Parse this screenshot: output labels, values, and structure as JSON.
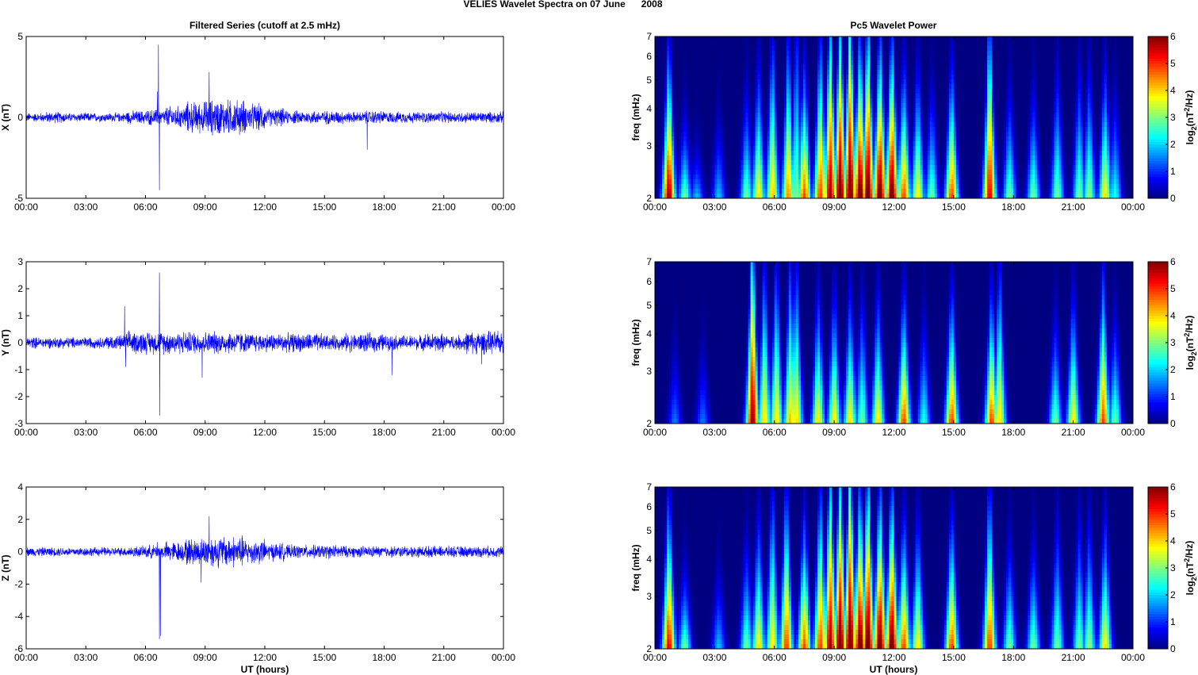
{
  "title": "VELIES Wavelet Spectra on 07 June      2008",
  "chart_data": [
    {
      "type": "line",
      "title": "Filtered Series (cutoff at 2.5 mHz)",
      "x_tick_labels": [
        "00:00",
        "03:00",
        "06:00",
        "09:00",
        "12:00",
        "15:00",
        "18:00",
        "21:00",
        "00:00"
      ],
      "xlim_hours": [
        0,
        24
      ],
      "xlabel": "UT (hours)",
      "panels": [
        {
          "component": "X",
          "ylabel": "X (nT)",
          "ylim": [
            -5,
            5
          ],
          "yticks": [
            -5,
            0,
            5
          ],
          "color": "#0000ff",
          "noise_envelope_nT": [
            0.2,
            0.25,
            0.2,
            0.2,
            0.2,
            0.3,
            0.35,
            0.5,
            0.7,
            0.8,
            0.8,
            0.6,
            0.4,
            0.3,
            0.3,
            0.3,
            0.25,
            0.3,
            0.25,
            0.25,
            0.25,
            0.25,
            0.25,
            0.25
          ],
          "spikes": [
            [
              6.65,
              4.5
            ],
            [
              6.7,
              -4.5
            ],
            [
              9.2,
              2.8
            ],
            [
              17.15,
              -2.0
            ],
            [
              6.6,
              1.6
            ]
          ]
        },
        {
          "component": "Y",
          "ylabel": "Y (nT)",
          "ylim": [
            -3,
            3
          ],
          "yticks": [
            -3,
            -2,
            -1,
            0,
            1,
            2,
            3
          ],
          "color": "#0000ff",
          "noise_envelope_nT": [
            0.15,
            0.15,
            0.15,
            0.15,
            0.2,
            0.3,
            0.3,
            0.3,
            0.3,
            0.3,
            0.3,
            0.25,
            0.25,
            0.25,
            0.25,
            0.2,
            0.25,
            0.25,
            0.2,
            0.2,
            0.25,
            0.2,
            0.3,
            0.3
          ],
          "spikes": [
            [
              4.95,
              1.35
            ],
            [
              6.7,
              2.6
            ],
            [
              6.72,
              -2.7
            ],
            [
              8.85,
              -1.3
            ],
            [
              18.4,
              -1.2
            ],
            [
              5.0,
              -0.9
            ],
            [
              22.9,
              -0.8
            ]
          ]
        },
        {
          "component": "Z",
          "ylabel": "Z (nT)",
          "ylim": [
            -6,
            4
          ],
          "yticks": [
            -6,
            -4,
            -2,
            0,
            2,
            4
          ],
          "color": "#0000ff",
          "noise_envelope_nT": [
            0.2,
            0.2,
            0.2,
            0.2,
            0.2,
            0.25,
            0.3,
            0.45,
            0.6,
            0.7,
            0.7,
            0.55,
            0.4,
            0.3,
            0.3,
            0.3,
            0.25,
            0.25,
            0.25,
            0.25,
            0.25,
            0.25,
            0.25,
            0.25
          ],
          "spikes": [
            [
              6.7,
              -5.4
            ],
            [
              6.75,
              -5.2
            ],
            [
              9.2,
              2.2
            ],
            [
              8.8,
              -1.9
            ],
            [
              6.6,
              0.6
            ]
          ]
        }
      ]
    },
    {
      "type": "heatmap",
      "title": "Pc5 Wavelet Power",
      "x_tick_labels": [
        "00:00",
        "03:00",
        "06:00",
        "09:00",
        "12:00",
        "15:00",
        "18:00",
        "21:00",
        "00:00"
      ],
      "xlim_hours": [
        0,
        24
      ],
      "xlabel": "UT (hours)",
      "ylabel": "freq (mHz)",
      "yscale": "log",
      "ylim": [
        2,
        7
      ],
      "yticks": [
        2,
        3,
        4,
        5,
        6,
        7
      ],
      "colormap": "jet",
      "clim": [
        0,
        6
      ],
      "colorbar_ticks": [
        0,
        1,
        2,
        3,
        4,
        5,
        6
      ],
      "colorbar_label_parts": [
        "log",
        "2",
        "(nT",
        "2",
        "/Hz)"
      ],
      "note": "blobs: [hour, peak log2 power, decay height mHz]",
      "panels": [
        {
          "component": "X",
          "blobs": [
            [
              0.7,
              6,
              2.5
            ],
            [
              1.5,
              3,
              1
            ],
            [
              2.1,
              2,
              0.6
            ],
            [
              3.2,
              2,
              1
            ],
            [
              4.6,
              3,
              1.5
            ],
            [
              5.2,
              4,
              2
            ],
            [
              5.9,
              4.2,
              3
            ],
            [
              6.7,
              4.5,
              3
            ],
            [
              7.1,
              3,
              4
            ],
            [
              7.5,
              5,
              2
            ],
            [
              8.3,
              5,
              3
            ],
            [
              8.8,
              6,
              4
            ],
            [
              9.3,
              6.5,
              4
            ],
            [
              9.8,
              6.5,
              5
            ],
            [
              10.3,
              6.5,
              3
            ],
            [
              10.7,
              6.5,
              4
            ],
            [
              11.3,
              6.5,
              3
            ],
            [
              11.9,
              6.5,
              3
            ],
            [
              12.5,
              5,
              2
            ],
            [
              13.2,
              4,
              2
            ],
            [
              13.9,
              3,
              1.5
            ],
            [
              14.9,
              5,
              2
            ],
            [
              16.8,
              5.5,
              4
            ],
            [
              17.8,
              3,
              1.5
            ],
            [
              19,
              3,
              1.5
            ],
            [
              20.2,
              3,
              2
            ],
            [
              21.3,
              3,
              2
            ],
            [
              21.8,
              3.2,
              2
            ],
            [
              22.6,
              4,
              2
            ],
            [
              23.1,
              2.5,
              1.5
            ]
          ]
        },
        {
          "component": "Y",
          "blobs": [
            [
              1,
              1.5,
              1
            ],
            [
              2.4,
              1.5,
              1
            ],
            [
              4.9,
              6,
              5
            ],
            [
              5.5,
              4,
              3
            ],
            [
              6.1,
              4,
              3
            ],
            [
              6.8,
              4.2,
              3
            ],
            [
              7.1,
              4,
              3
            ],
            [
              8.2,
              4,
              2
            ],
            [
              9,
              4,
              2
            ],
            [
              9.8,
              4,
              2
            ],
            [
              10.4,
              3,
              2
            ],
            [
              11.2,
              4,
              2
            ],
            [
              12.5,
              5,
              2
            ],
            [
              13.5,
              2.5,
              1.5
            ],
            [
              14.9,
              5,
              2
            ],
            [
              16.9,
              5,
              2
            ],
            [
              17.3,
              4,
              3
            ],
            [
              20.1,
              3,
              1.5
            ],
            [
              21,
              4,
              2
            ],
            [
              22.5,
              5,
              2.5
            ],
            [
              23.1,
              3,
              1.5
            ]
          ]
        },
        {
          "component": "Z",
          "blobs": [
            [
              0.7,
              5.5,
              2.5
            ],
            [
              1.5,
              3,
              1
            ],
            [
              3.2,
              2,
              1
            ],
            [
              4.6,
              3,
              1.5
            ],
            [
              5.2,
              4,
              2
            ],
            [
              5.9,
              4,
              3
            ],
            [
              6.6,
              5,
              3
            ],
            [
              7.5,
              5,
              2
            ],
            [
              8.3,
              5,
              3
            ],
            [
              8.8,
              6,
              4
            ],
            [
              9.3,
              6.5,
              4
            ],
            [
              9.8,
              6.5,
              5
            ],
            [
              10.3,
              6.5,
              3
            ],
            [
              10.7,
              6.5,
              4
            ],
            [
              11.3,
              6.5,
              3
            ],
            [
              11.9,
              6.5,
              3
            ],
            [
              12.5,
              5,
              2
            ],
            [
              13.2,
              4,
              2
            ],
            [
              14.9,
              5,
              2
            ],
            [
              16.8,
              5,
              3
            ],
            [
              17.8,
              3,
              1.5
            ],
            [
              19,
              3,
              1.5
            ],
            [
              20.2,
              3,
              2
            ],
            [
              21.3,
              3,
              2
            ],
            [
              21.8,
              3.2,
              2
            ],
            [
              22.6,
              4,
              2
            ]
          ]
        }
      ]
    }
  ]
}
